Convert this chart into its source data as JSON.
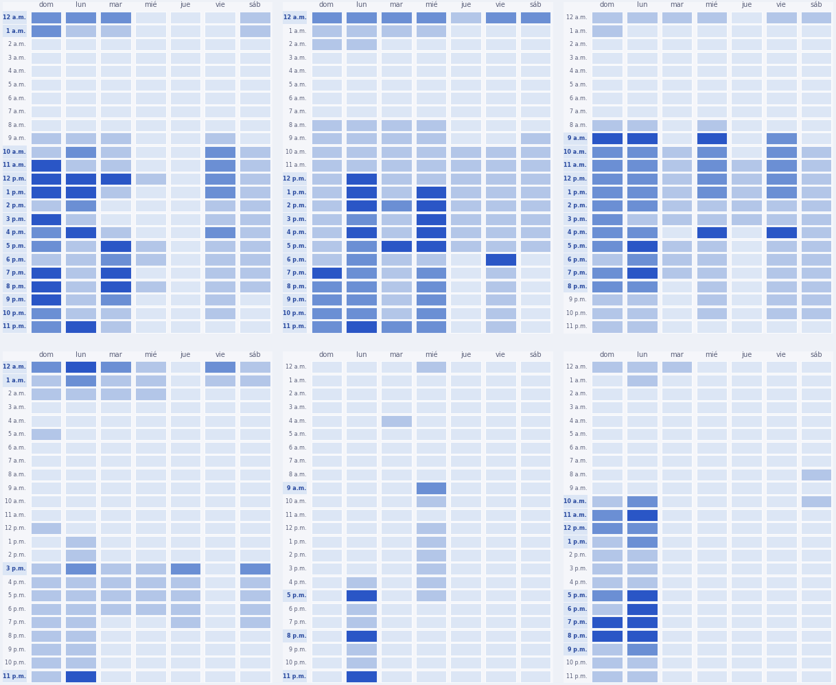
{
  "days": [
    "dom",
    "lun",
    "mar",
    "mié",
    "jue",
    "vie",
    "sáb"
  ],
  "hours": [
    "12 a.m.",
    "1 a.m.",
    "2 a.m.",
    "3 a.m.",
    "4 a.m.",
    "5 a.m.",
    "6 a.m.",
    "7 a.m.",
    "8 a.m.",
    "9 a.m.",
    "10 a.m.",
    "11 a.m.",
    "12 p.m.",
    "1 p.m.",
    "2 p.m.",
    "3 p.m.",
    "4 p.m.",
    "5 p.m.",
    "6 p.m.",
    "7 p.m.",
    "8 p.m.",
    "9 p.m.",
    "10 p.m.",
    "11 p.m."
  ],
  "bg_color": "#eef1f7",
  "panel_bg": "#f5f6fa",
  "divider_color": "#d8dce8",
  "text_color": "#5a5f7a",
  "label_highlight_bg": "#dce6f5",
  "label_highlight_color": "#2a4a9f",
  "colors": [
    "#dce6f5",
    "#b3c6e8",
    "#6b8fd4",
    "#2a56c6"
  ],
  "heatmaps": [
    [
      [
        2,
        2,
        2,
        0,
        0,
        0,
        1
      ],
      [
        2,
        1,
        1,
        0,
        0,
        0,
        1
      ],
      [
        0,
        0,
        0,
        0,
        0,
        0,
        0
      ],
      [
        0,
        0,
        0,
        0,
        0,
        0,
        0
      ],
      [
        0,
        0,
        0,
        0,
        0,
        0,
        0
      ],
      [
        0,
        0,
        0,
        0,
        0,
        0,
        0
      ],
      [
        0,
        0,
        0,
        0,
        0,
        0,
        0
      ],
      [
        0,
        0,
        0,
        0,
        0,
        0,
        0
      ],
      [
        0,
        0,
        0,
        0,
        0,
        0,
        0
      ],
      [
        1,
        1,
        1,
        0,
        0,
        1,
        0
      ],
      [
        1,
        2,
        1,
        0,
        0,
        2,
        1
      ],
      [
        3,
        1,
        1,
        0,
        0,
        2,
        1
      ],
      [
        3,
        3,
        3,
        1,
        0,
        2,
        1
      ],
      [
        3,
        3,
        1,
        0,
        0,
        2,
        1
      ],
      [
        1,
        2,
        0,
        0,
        0,
        1,
        1
      ],
      [
        3,
        1,
        0,
        0,
        0,
        1,
        1
      ],
      [
        2,
        3,
        1,
        0,
        0,
        2,
        1
      ],
      [
        2,
        1,
        3,
        1,
        0,
        1,
        1
      ],
      [
        1,
        1,
        2,
        1,
        0,
        1,
        1
      ],
      [
        3,
        1,
        3,
        0,
        0,
        1,
        1
      ],
      [
        3,
        1,
        3,
        1,
        0,
        1,
        1
      ],
      [
        3,
        1,
        2,
        0,
        0,
        1,
        0
      ],
      [
        2,
        1,
        1,
        0,
        0,
        1,
        0
      ],
      [
        2,
        3,
        1,
        0,
        0,
        0,
        0
      ]
    ],
    [
      [
        2,
        2,
        2,
        2,
        1,
        2,
        2
      ],
      [
        1,
        1,
        1,
        1,
        0,
        0,
        0
      ],
      [
        1,
        1,
        0,
        0,
        0,
        0,
        0
      ],
      [
        0,
        0,
        0,
        0,
        0,
        0,
        0
      ],
      [
        0,
        0,
        0,
        0,
        0,
        0,
        0
      ],
      [
        0,
        0,
        0,
        0,
        0,
        0,
        0
      ],
      [
        0,
        0,
        0,
        0,
        0,
        0,
        0
      ],
      [
        0,
        0,
        0,
        0,
        0,
        0,
        0
      ],
      [
        1,
        1,
        1,
        1,
        0,
        0,
        0
      ],
      [
        1,
        1,
        1,
        1,
        0,
        0,
        1
      ],
      [
        1,
        1,
        1,
        1,
        1,
        1,
        1
      ],
      [
        1,
        1,
        1,
        1,
        1,
        1,
        1
      ],
      [
        1,
        3,
        1,
        1,
        1,
        1,
        1
      ],
      [
        1,
        3,
        1,
        3,
        1,
        1,
        1
      ],
      [
        1,
        3,
        2,
        3,
        1,
        1,
        1
      ],
      [
        1,
        2,
        1,
        3,
        1,
        1,
        1
      ],
      [
        1,
        3,
        1,
        3,
        1,
        1,
        1
      ],
      [
        1,
        2,
        3,
        3,
        1,
        1,
        1
      ],
      [
        1,
        2,
        1,
        1,
        0,
        3,
        0
      ],
      [
        3,
        2,
        1,
        2,
        0,
        1,
        0
      ],
      [
        2,
        2,
        1,
        2,
        0,
        1,
        0
      ],
      [
        2,
        2,
        1,
        2,
        0,
        1,
        0
      ],
      [
        2,
        2,
        1,
        2,
        0,
        1,
        0
      ],
      [
        2,
        3,
        2,
        2,
        0,
        1,
        0
      ]
    ],
    [
      [
        1,
        1,
        1,
        1,
        0,
        1,
        1
      ],
      [
        1,
        0,
        0,
        0,
        0,
        0,
        0
      ],
      [
        0,
        0,
        0,
        0,
        0,
        0,
        0
      ],
      [
        0,
        0,
        0,
        0,
        0,
        0,
        0
      ],
      [
        0,
        0,
        0,
        0,
        0,
        0,
        0
      ],
      [
        0,
        0,
        0,
        0,
        0,
        0,
        0
      ],
      [
        0,
        0,
        0,
        0,
        0,
        0,
        0
      ],
      [
        0,
        0,
        0,
        0,
        0,
        0,
        0
      ],
      [
        1,
        1,
        0,
        1,
        0,
        0,
        0
      ],
      [
        3,
        3,
        0,
        3,
        0,
        2,
        0
      ],
      [
        2,
        2,
        1,
        2,
        0,
        2,
        1
      ],
      [
        2,
        2,
        1,
        2,
        1,
        2,
        1
      ],
      [
        2,
        2,
        1,
        2,
        1,
        2,
        1
      ],
      [
        2,
        2,
        1,
        2,
        1,
        2,
        1
      ],
      [
        2,
        2,
        1,
        1,
        1,
        1,
        1
      ],
      [
        2,
        1,
        1,
        1,
        1,
        1,
        1
      ],
      [
        2,
        2,
        0,
        3,
        0,
        3,
        1
      ],
      [
        2,
        3,
        1,
        1,
        0,
        1,
        1
      ],
      [
        1,
        2,
        1,
        1,
        0,
        1,
        1
      ],
      [
        2,
        3,
        1,
        1,
        0,
        1,
        1
      ],
      [
        2,
        2,
        0,
        1,
        0,
        1,
        1
      ],
      [
        1,
        1,
        0,
        1,
        0,
        1,
        1
      ],
      [
        1,
        1,
        0,
        1,
        0,
        1,
        1
      ],
      [
        1,
        1,
        0,
        0,
        0,
        0,
        0
      ]
    ],
    [
      [
        2,
        3,
        2,
        1,
        0,
        2,
        1
      ],
      [
        1,
        2,
        1,
        1,
        0,
        1,
        1
      ],
      [
        1,
        1,
        1,
        1,
        0,
        0,
        0
      ],
      [
        0,
        0,
        0,
        0,
        0,
        0,
        0
      ],
      [
        0,
        0,
        0,
        0,
        0,
        0,
        0
      ],
      [
        1,
        0,
        0,
        0,
        0,
        0,
        0
      ],
      [
        0,
        0,
        0,
        0,
        0,
        0,
        0
      ],
      [
        0,
        0,
        0,
        0,
        0,
        0,
        0
      ],
      [
        0,
        0,
        0,
        0,
        0,
        0,
        0
      ],
      [
        0,
        0,
        0,
        0,
        0,
        0,
        0
      ],
      [
        0,
        0,
        0,
        0,
        0,
        0,
        0
      ],
      [
        0,
        0,
        0,
        0,
        0,
        0,
        0
      ],
      [
        1,
        0,
        0,
        0,
        0,
        0,
        0
      ],
      [
        0,
        1,
        0,
        0,
        0,
        0,
        0
      ],
      [
        0,
        1,
        0,
        0,
        0,
        0,
        0
      ],
      [
        1,
        2,
        1,
        1,
        2,
        0,
        2
      ],
      [
        1,
        1,
        1,
        1,
        1,
        0,
        1
      ],
      [
        1,
        1,
        1,
        1,
        1,
        0,
        1
      ],
      [
        1,
        1,
        1,
        1,
        1,
        0,
        1
      ],
      [
        1,
        1,
        0,
        0,
        1,
        0,
        1
      ],
      [
        1,
        1,
        0,
        0,
        0,
        0,
        0
      ],
      [
        1,
        1,
        0,
        0,
        0,
        0,
        0
      ],
      [
        1,
        1,
        0,
        0,
        0,
        0,
        0
      ],
      [
        1,
        3,
        0,
        0,
        0,
        0,
        0
      ]
    ],
    [
      [
        0,
        0,
        0,
        1,
        0,
        0,
        0
      ],
      [
        0,
        0,
        0,
        0,
        0,
        0,
        0
      ],
      [
        0,
        0,
        0,
        0,
        0,
        0,
        0
      ],
      [
        0,
        0,
        0,
        0,
        0,
        0,
        0
      ],
      [
        0,
        0,
        1,
        0,
        0,
        0,
        0
      ],
      [
        0,
        0,
        0,
        0,
        0,
        0,
        0
      ],
      [
        0,
        0,
        0,
        0,
        0,
        0,
        0
      ],
      [
        0,
        0,
        0,
        0,
        0,
        0,
        0
      ],
      [
        0,
        0,
        0,
        0,
        0,
        0,
        0
      ],
      [
        0,
        0,
        0,
        2,
        0,
        0,
        0
      ],
      [
        0,
        0,
        0,
        1,
        0,
        0,
        0
      ],
      [
        0,
        0,
        0,
        0,
        0,
        0,
        0
      ],
      [
        0,
        0,
        0,
        1,
        0,
        0,
        0
      ],
      [
        0,
        0,
        0,
        1,
        0,
        0,
        0
      ],
      [
        0,
        0,
        0,
        1,
        0,
        0,
        0
      ],
      [
        0,
        0,
        0,
        1,
        0,
        0,
        0
      ],
      [
        0,
        1,
        0,
        1,
        0,
        0,
        0
      ],
      [
        0,
        3,
        0,
        1,
        0,
        0,
        0
      ],
      [
        0,
        1,
        0,
        0,
        0,
        0,
        0
      ],
      [
        0,
        1,
        0,
        0,
        0,
        0,
        0
      ],
      [
        0,
        3,
        0,
        0,
        0,
        0,
        0
      ],
      [
        0,
        1,
        0,
        0,
        0,
        0,
        0
      ],
      [
        0,
        1,
        0,
        0,
        0,
        0,
        0
      ],
      [
        0,
        3,
        0,
        0,
        0,
        0,
        0
      ]
    ],
    [
      [
        1,
        1,
        1,
        0,
        0,
        0,
        0
      ],
      [
        0,
        1,
        0,
        0,
        0,
        0,
        0
      ],
      [
        0,
        0,
        0,
        0,
        0,
        0,
        0
      ],
      [
        0,
        0,
        0,
        0,
        0,
        0,
        0
      ],
      [
        0,
        0,
        0,
        0,
        0,
        0,
        0
      ],
      [
        0,
        0,
        0,
        0,
        0,
        0,
        0
      ],
      [
        0,
        0,
        0,
        0,
        0,
        0,
        0
      ],
      [
        0,
        0,
        0,
        0,
        0,
        0,
        0
      ],
      [
        0,
        0,
        0,
        0,
        0,
        0,
        1
      ],
      [
        0,
        0,
        0,
        0,
        0,
        0,
        0
      ],
      [
        1,
        2,
        0,
        0,
        0,
        0,
        1
      ],
      [
        2,
        3,
        0,
        0,
        0,
        0,
        0
      ],
      [
        2,
        2,
        0,
        0,
        0,
        0,
        0
      ],
      [
        1,
        2,
        0,
        0,
        0,
        0,
        0
      ],
      [
        1,
        1,
        0,
        0,
        0,
        0,
        0
      ],
      [
        1,
        1,
        0,
        0,
        0,
        0,
        0
      ],
      [
        1,
        1,
        0,
        0,
        0,
        0,
        0
      ],
      [
        2,
        3,
        0,
        0,
        0,
        0,
        0
      ],
      [
        1,
        3,
        0,
        0,
        0,
        0,
        0
      ],
      [
        3,
        3,
        0,
        0,
        0,
        0,
        0
      ],
      [
        3,
        3,
        0,
        0,
        0,
        0,
        0
      ],
      [
        1,
        2,
        0,
        0,
        0,
        0,
        0
      ],
      [
        1,
        1,
        0,
        0,
        0,
        0,
        0
      ],
      [
        1,
        1,
        0,
        0,
        0,
        0,
        0
      ]
    ]
  ]
}
